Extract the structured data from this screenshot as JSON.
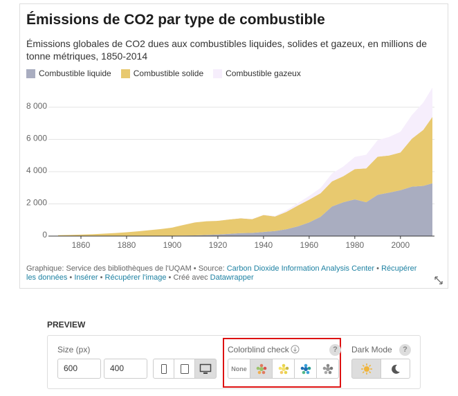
{
  "chart_data": {
    "type": "area",
    "stacked": true,
    "title": "Émissions de CO2 par type de combustible",
    "subtitle": "Émissions globales de CO2 dues aux combustibles liquides, solides et gazeux, en millions de tonne métriques, 1850-2014",
    "x": [
      1850,
      1855,
      1860,
      1865,
      1870,
      1875,
      1880,
      1885,
      1890,
      1895,
      1900,
      1905,
      1910,
      1915,
      1920,
      1925,
      1930,
      1935,
      1940,
      1945,
      1950,
      1955,
      1960,
      1965,
      1970,
      1975,
      1980,
      1985,
      1990,
      1995,
      2000,
      2005,
      2010,
      2014
    ],
    "series": [
      {
        "name": "Combustible liquide",
        "color": "#a9adc0",
        "values": [
          0,
          0,
          0,
          0,
          1,
          2,
          3,
          5,
          9,
          14,
          23,
          34,
          43,
          68,
          95,
          141,
          184,
          200,
          255,
          310,
          423,
          600,
          850,
          1200,
          1839,
          2100,
          2280,
          2100,
          2565,
          2700,
          2846,
          3070,
          3114,
          3280
        ]
      },
      {
        "name": "Combustible solide",
        "color": "#e8c96f",
        "values": [
          54,
          70,
          91,
          115,
          147,
          185,
          236,
          290,
          356,
          420,
          506,
          660,
          806,
          850,
          851,
          890,
          915,
          850,
          1053,
          903,
          1078,
          1290,
          1410,
          1460,
          1555,
          1620,
          1880,
          2100,
          2361,
          2300,
          2342,
          2974,
          3480,
          4117
        ]
      },
      {
        "name": "Combustible gazeux",
        "color": "#f6eefc",
        "values": [
          0,
          0,
          0,
          0,
          0,
          0,
          0,
          1,
          1,
          1,
          2,
          3,
          3,
          3,
          4,
          8,
          20,
          18,
          20,
          40,
          97,
          150,
          235,
          330,
          493,
          600,
          754,
          850,
          1026,
          1150,
          1292,
          1470,
          1696,
          1823
        ]
      }
    ],
    "xlim": [
      1850,
      2014
    ],
    "xticks": [
      1860,
      1880,
      1900,
      1920,
      1940,
      1960,
      1980,
      2000
    ],
    "ylim": [
      0,
      9500
    ],
    "yticks": [
      0,
      {
        "value": 2000,
        "label": "2 000"
      },
      {
        "value": 4000,
        "label": "4 000"
      },
      {
        "value": 6000,
        "label": "6 000"
      },
      {
        "value": 8000,
        "label": "8 000"
      }
    ],
    "grid": true,
    "legend_position": "top-left"
  },
  "footer": {
    "credit": "Graphique: Service des bibliothèques de l'UQAM",
    "separator": "•",
    "source_label": "Source:",
    "source": "Carbon Dioxide Information Analysis Center",
    "links": [
      "Récupérer les données",
      "Insérer",
      "Récupérer l'image"
    ],
    "made_with": "Créé avec",
    "tool": "Datawrapper"
  },
  "controls": {
    "preview": "PREVIEW",
    "size_label": "Size (px)",
    "width": 600,
    "height": 400,
    "colorblind_label": "Colorblind check",
    "colorblind_none": "None",
    "dark_mode_label": "Dark Mode",
    "help": "?"
  }
}
